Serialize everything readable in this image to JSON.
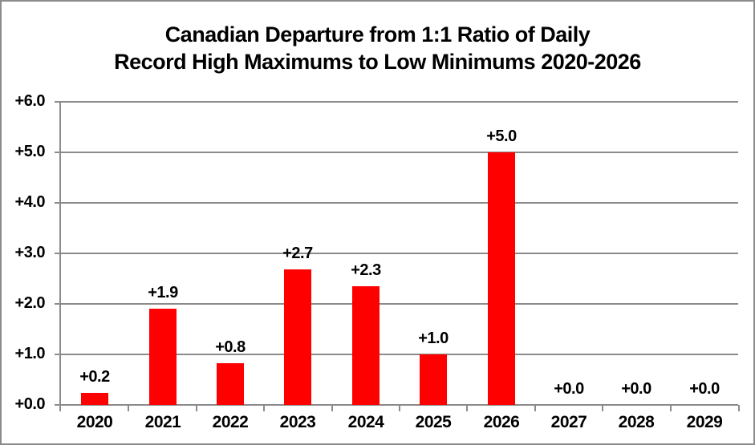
{
  "chart_data": {
    "type": "bar",
    "title": "Canadian Departure from 1:1 Ratio of Daily Record High Maximums to Low Minimums 2020-2026",
    "title_lines": [
      "Canadian Departure from 1:1 Ratio of Daily",
      "Record High Maximums to Low Minimums 2020-2026"
    ],
    "categories": [
      "2020",
      "2021",
      "2022",
      "2023",
      "2024",
      "2025",
      "2026",
      "2027",
      "2028",
      "2029"
    ],
    "values": [
      0.24,
      1.91,
      0.83,
      2.68,
      2.35,
      1.0,
      5.0,
      0.0,
      0.0,
      0.0
    ],
    "bar_labels": [
      "+0.2",
      "+1.9",
      "+0.8",
      "+2.7",
      "+2.3",
      "+1.0",
      "+5.0",
      "+0.0",
      "+0.0",
      "+0.0"
    ],
    "y_tick_labels": [
      "+6.0",
      "+5.0",
      "+4.0",
      "+3.0",
      "+2.0",
      "+1.0",
      "+0.0"
    ],
    "y_tick_values": [
      6.0,
      5.0,
      4.0,
      3.0,
      2.0,
      1.0,
      0.0
    ],
    "ylim": [
      0,
      6
    ],
    "xlabel": "",
    "ylabel": "",
    "grid": true,
    "legend": false,
    "colors": {
      "bar": "#ff0000",
      "gridline": "#8b8b8b",
      "axis": "#8b8b8b",
      "text": "#000000",
      "background": "#ffffff",
      "border": "#8b8b8b"
    }
  }
}
